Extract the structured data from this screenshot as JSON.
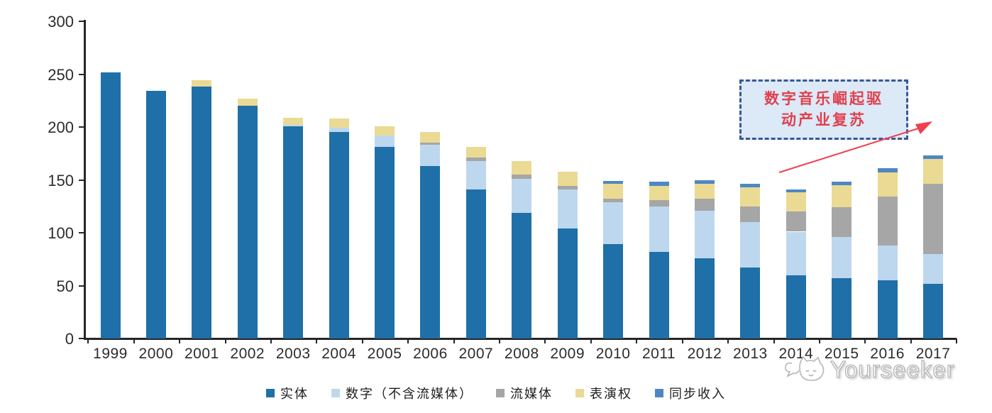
{
  "chart_data": {
    "type": "bar",
    "stacked": true,
    "title": "",
    "xlabel": "",
    "ylabel": "",
    "categories": [
      "1999",
      "2000",
      "2001",
      "2002",
      "2003",
      "2004",
      "2005",
      "2006",
      "2007",
      "2008",
      "2009",
      "2010",
      "2011",
      "2012",
      "2013",
      "2014",
      "2015",
      "2016",
      "2017"
    ],
    "series": [
      {
        "name": "实体",
        "color": "#1F6FA8",
        "values": [
          252,
          234,
          238,
          220,
          201,
          195,
          181,
          163,
          141,
          119,
          104,
          89,
          82,
          76,
          67,
          60,
          57,
          55,
          52
        ]
      },
      {
        "name": "数字（不含流媒体）",
        "color": "#BDD7EE",
        "values": [
          0,
          0,
          0,
          0,
          1,
          4,
          11,
          20,
          27,
          32,
          37,
          40,
          43,
          45,
          43,
          41,
          39,
          33,
          28
        ]
      },
      {
        "name": "流媒体",
        "color": "#A6A6A6",
        "values": [
          0,
          0,
          0,
          0,
          0,
          0,
          0,
          2,
          3,
          4,
          3,
          3,
          6,
          11,
          15,
          19,
          28,
          46,
          66
        ]
      },
      {
        "name": "表演权",
        "color": "#EADA93",
        "values": [
          0,
          0,
          6,
          7,
          7,
          9,
          9,
          10,
          10,
          13,
          14,
          14,
          13,
          14,
          18,
          18,
          21,
          23,
          24
        ]
      },
      {
        "name": "同步收入",
        "color": "#4E87C4",
        "values": [
          0,
          0,
          0,
          0,
          0,
          0,
          0,
          0,
          0,
          0,
          0,
          3,
          4,
          4,
          3,
          3,
          3,
          4,
          3
        ]
      }
    ],
    "ylim": [
      0,
      300
    ],
    "yticks": [
      0,
      50,
      100,
      150,
      200,
      250,
      300
    ],
    "grid": false,
    "legend_position": "bottom"
  },
  "annotation": {
    "full_text": "数字音乐崛起驱动产业复苏",
    "lines": [
      "数字音乐崛起驱",
      "动产业复苏"
    ],
    "text_color": "#E0404E",
    "border_color": "#3A5794",
    "fill_color": "#DCE9F7",
    "arrow_color": "#F0404E"
  },
  "watermark": {
    "text": "Yourseeker"
  }
}
